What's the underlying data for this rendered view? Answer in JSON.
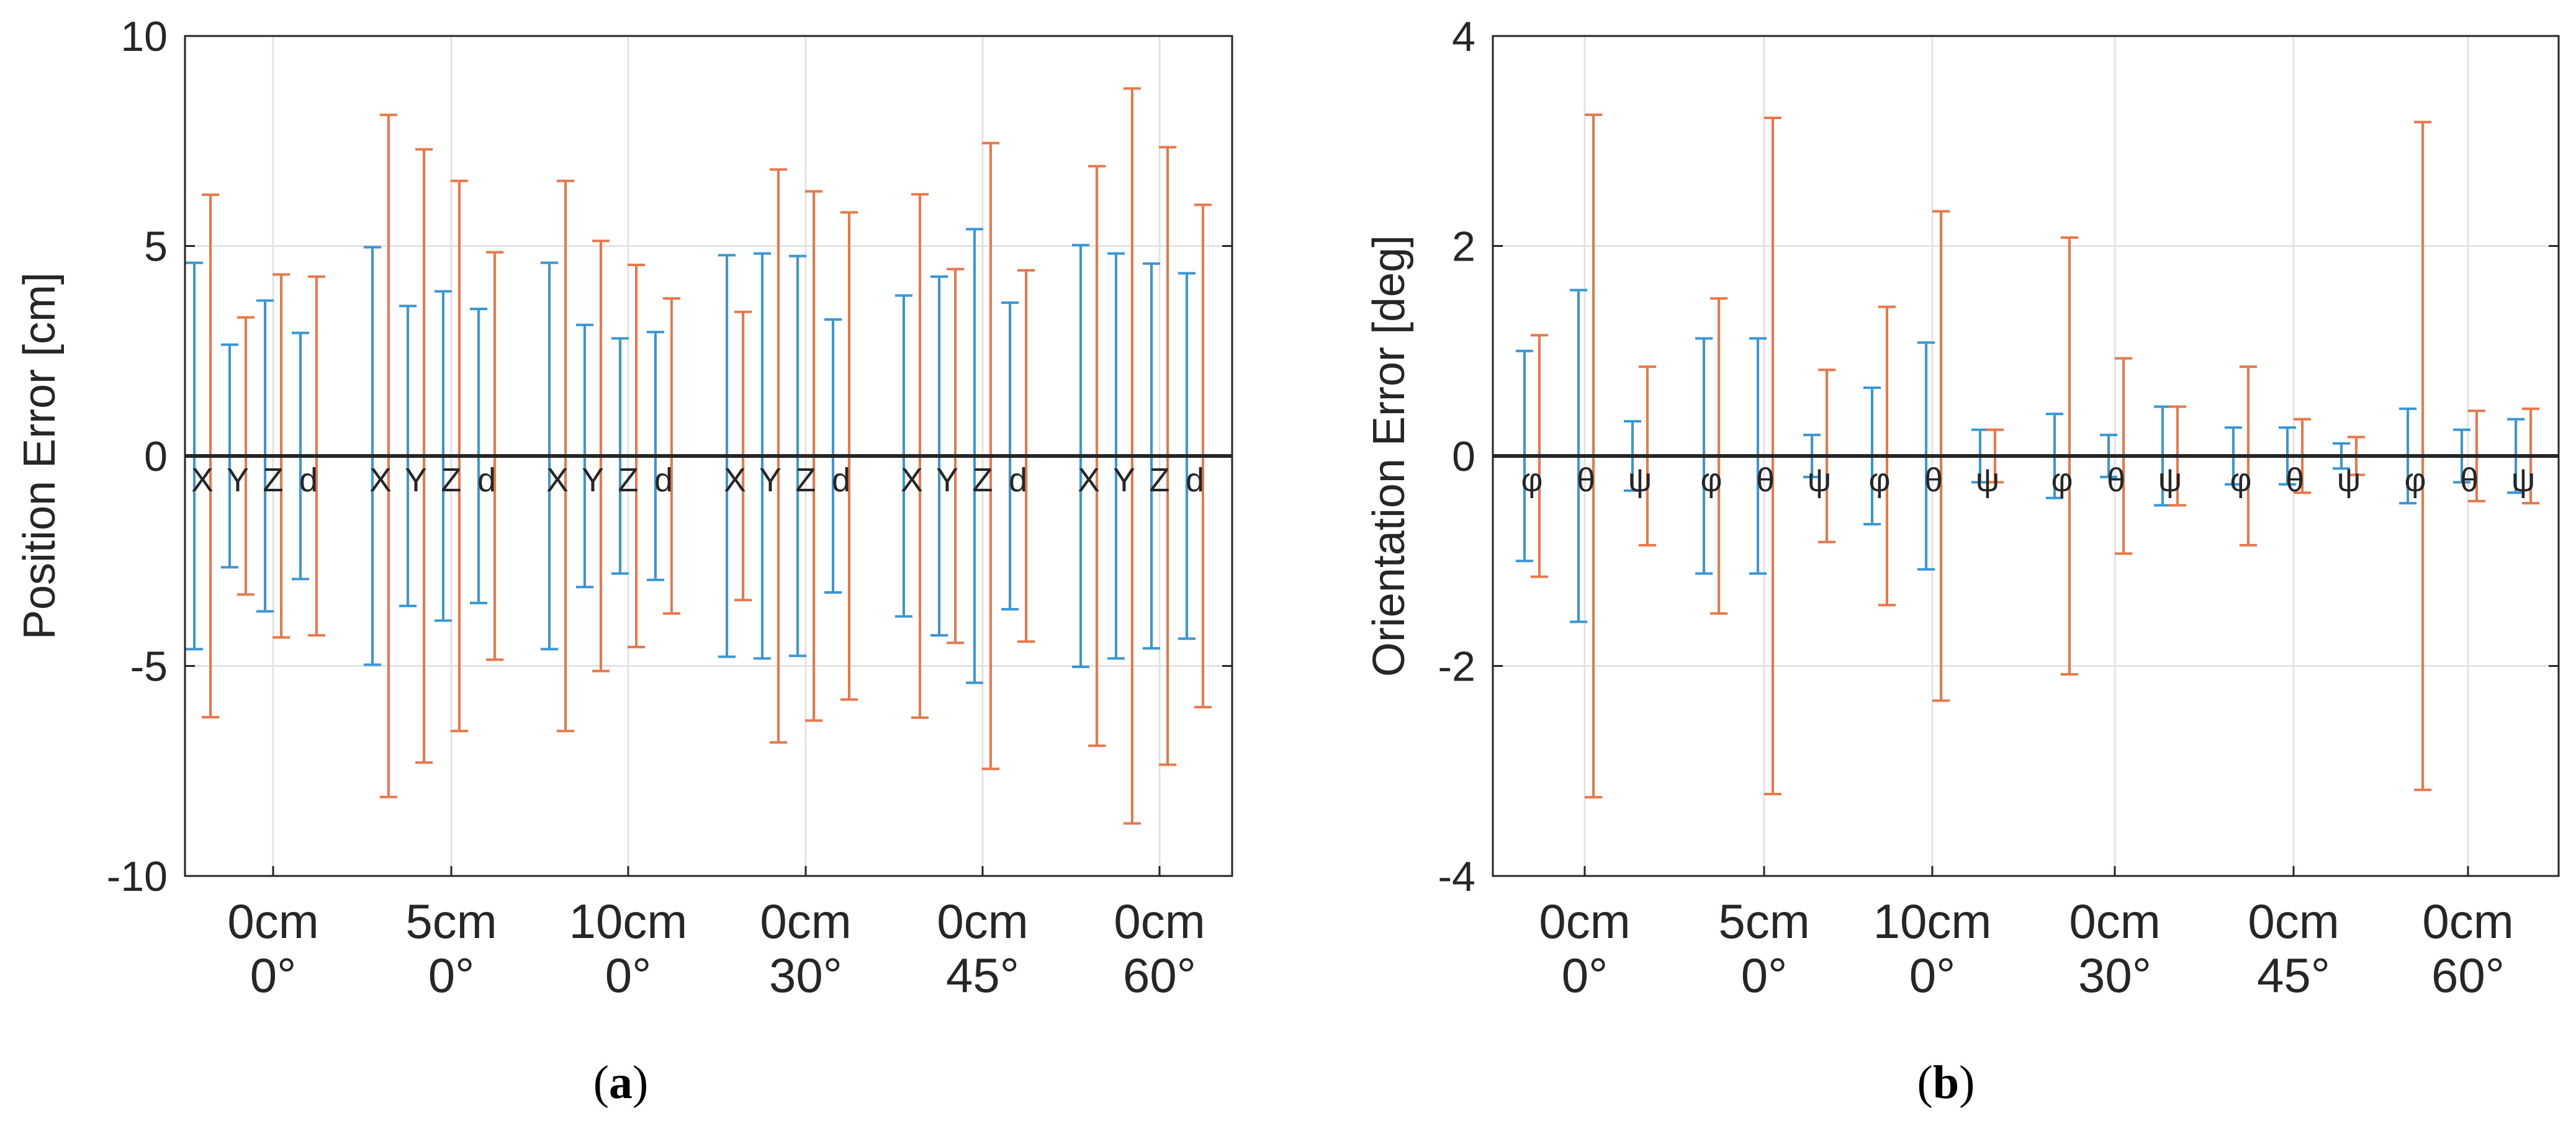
{
  "colors": {
    "tracker": "#3a97d4",
    "reference": "#e9774a",
    "axis": "#262626",
    "grid": "#e3e3e3"
  },
  "chart_data": [
    {
      "panel": "a",
      "type": "errorbar",
      "ylabel": "Position Error [cm]",
      "ylim": [
        -10,
        10
      ],
      "yticks": [
        -10,
        -5,
        0,
        5,
        10
      ],
      "grid": true,
      "categories": [
        {
          "line1": "0cm",
          "line2": "0°"
        },
        {
          "line1": "5cm",
          "line2": "0°"
        },
        {
          "line1": "10cm",
          "line2": "0°"
        },
        {
          "line1": "0cm",
          "line2": "30°"
        },
        {
          "line1": "0cm",
          "line2": "45°"
        },
        {
          "line1": "0cm",
          "line2": "60°"
        }
      ],
      "component_labels": [
        "X",
        "Y",
        "Z",
        "d"
      ],
      "series": [
        {
          "name": "blue",
          "color_key": "tracker",
          "values": [
            [
              4.6,
              2.65,
              3.7,
              2.93
            ],
            [
              4.97,
              3.57,
              3.92,
              3.5
            ],
            [
              4.6,
              3.12,
              2.8,
              2.95
            ],
            [
              4.78,
              4.82,
              4.76,
              3.25
            ],
            [
              3.82,
              4.27,
              5.4,
              3.65
            ],
            [
              5.02,
              4.82,
              4.58,
              4.35
            ]
          ]
        },
        {
          "name": "orange",
          "color_key": "reference",
          "values": [
            [
              6.22,
              3.3,
              4.32,
              4.27
            ],
            [
              8.12,
              7.3,
              6.55,
              4.85
            ],
            [
              6.55,
              5.12,
              4.55,
              3.75
            ],
            [
              3.43,
              6.82,
              6.3,
              5.8
            ],
            [
              6.23,
              4.45,
              7.45,
              4.42
            ],
            [
              6.9,
              8.75,
              7.35,
              5.98
            ]
          ]
        }
      ],
      "caption": "(a)"
    },
    {
      "panel": "b",
      "type": "errorbar",
      "ylabel": "Orientation Error [deg]",
      "ylim": [
        -4,
        4
      ],
      "yticks": [
        -4,
        -2,
        0,
        2,
        4
      ],
      "grid": true,
      "categories": [
        {
          "line1": "0cm",
          "line2": "0°"
        },
        {
          "line1": "5cm",
          "line2": "0°"
        },
        {
          "line1": "10cm",
          "line2": "0°"
        },
        {
          "line1": "0cm",
          "line2": "30°"
        },
        {
          "line1": "0cm",
          "line2": "45°"
        },
        {
          "line1": "0cm",
          "line2": "60°"
        }
      ],
      "component_labels": [
        "φ",
        "θ",
        "ψ"
      ],
      "series": [
        {
          "name": "blue",
          "color_key": "tracker",
          "values": [
            [
              1.0,
              1.58,
              0.33
            ],
            [
              1.12,
              1.12,
              0.2
            ],
            [
              0.65,
              1.08,
              0.25
            ],
            [
              0.4,
              0.2,
              0.47
            ],
            [
              0.27,
              0.27,
              0.12
            ],
            [
              0.45,
              0.25,
              0.35
            ]
          ]
        },
        {
          "name": "orange",
          "color_key": "reference",
          "values": [
            [
              1.15,
              3.25,
              0.85
            ],
            [
              1.5,
              3.22,
              0.82
            ],
            [
              1.42,
              2.33,
              0.25
            ],
            [
              2.08,
              0.93,
              0.47
            ],
            [
              0.85,
              0.35,
              0.18
            ],
            [
              3.18,
              0.43,
              0.45
            ]
          ]
        }
      ],
      "caption": "(b)"
    }
  ]
}
